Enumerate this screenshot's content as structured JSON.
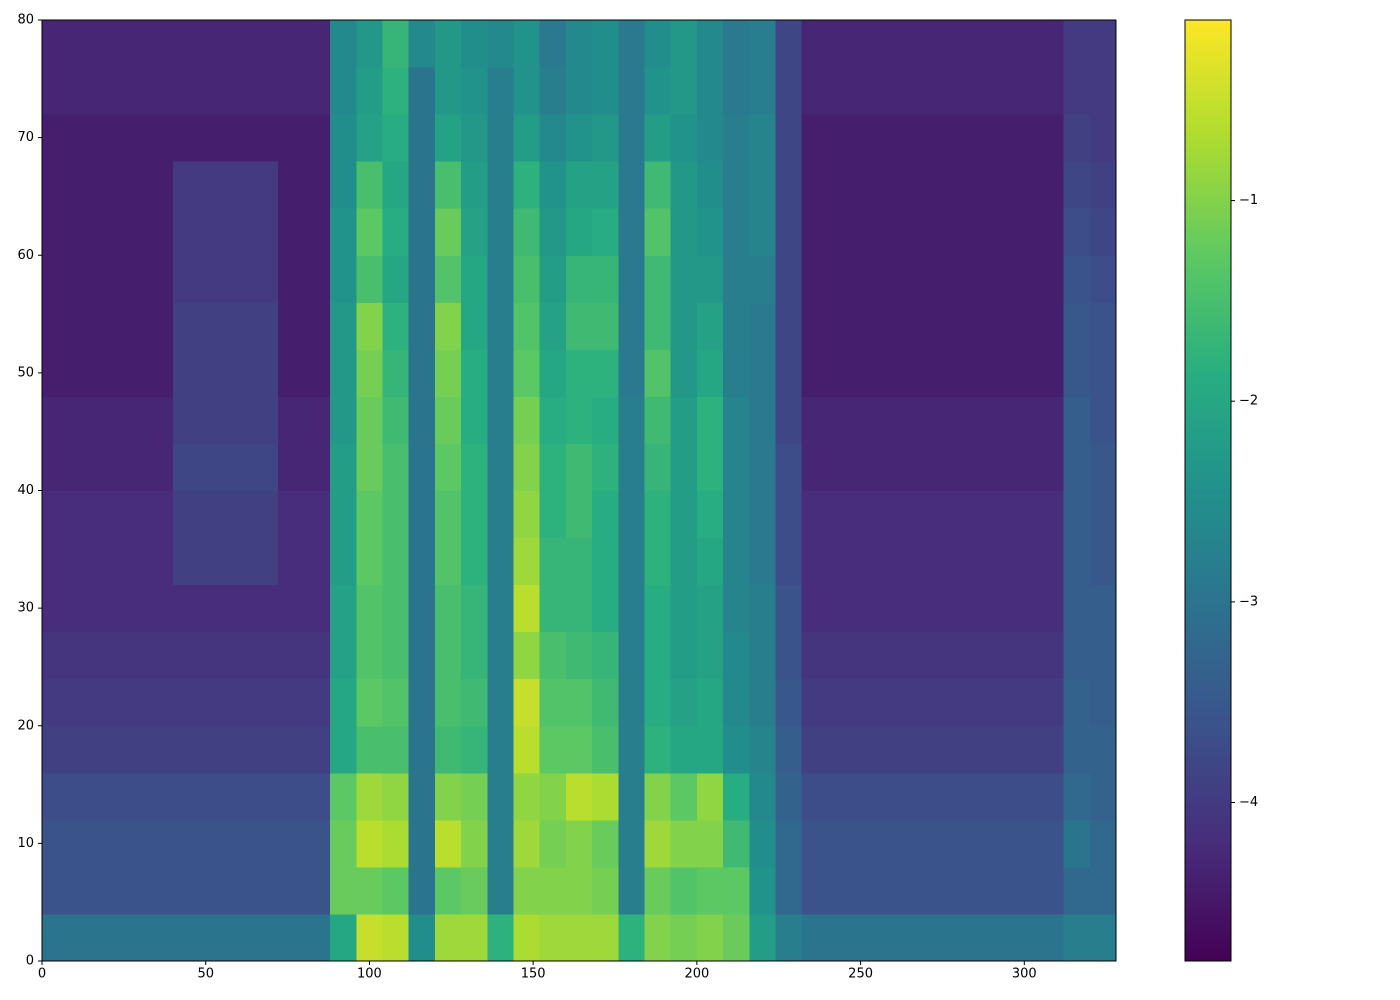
{
  "chart_data": {
    "type": "heatmap",
    "colormap": "viridis",
    "xbins": [
      0,
      8,
      16,
      24,
      32,
      40,
      48,
      56,
      64,
      72,
      80,
      88,
      96,
      104,
      112,
      120,
      128,
      136,
      144,
      152,
      160,
      168,
      176,
      184,
      192,
      200,
      208,
      216,
      224,
      232,
      240,
      248,
      256,
      264,
      272,
      280,
      288,
      296,
      304,
      312,
      320,
      328
    ],
    "ybins": [
      0,
      4,
      8,
      12,
      16,
      20,
      24,
      28,
      32,
      36,
      40,
      44,
      48,
      52,
      56,
      60,
      64,
      68,
      72,
      76,
      80
    ],
    "values": [
      [
        -3.0,
        -3.0,
        -3.0,
        -3.0,
        -3.0,
        -3.0,
        -3.0,
        -3.0,
        -3.0,
        -3.0,
        -3.0,
        -2.0,
        -0.5,
        -0.6,
        -2.5,
        -0.8,
        -0.8,
        -1.8,
        -0.7,
        -0.8,
        -0.8,
        -0.8,
        -1.8,
        -1.0,
        -1.1,
        -1.0,
        -1.2,
        -2.2,
        -2.8,
        -3.0,
        -3.0,
        -3.0,
        -3.0,
        -3.0,
        -3.0,
        -3.0,
        -3.0,
        -3.0,
        -3.0,
        -2.8,
        -2.8
      ],
      [
        -3.6,
        -3.6,
        -3.6,
        -3.6,
        -3.6,
        -3.6,
        -3.6,
        -3.6,
        -3.6,
        -3.6,
        -3.6,
        -1.2,
        -1.2,
        -1.3,
        -3.0,
        -1.3,
        -1.2,
        -2.8,
        -1.0,
        -1.0,
        -1.0,
        -1.1,
        -2.8,
        -1.2,
        -1.4,
        -1.3,
        -1.3,
        -2.4,
        -3.2,
        -3.6,
        -3.6,
        -3.6,
        -3.6,
        -3.6,
        -3.6,
        -3.6,
        -3.6,
        -3.6,
        -3.6,
        -3.2,
        -3.2
      ],
      [
        -3.6,
        -3.6,
        -3.6,
        -3.6,
        -3.6,
        -3.6,
        -3.6,
        -3.6,
        -3.6,
        -3.6,
        -3.6,
        -1.2,
        -0.6,
        -0.7,
        -3.0,
        -0.6,
        -1.0,
        -2.8,
        -0.8,
        -1.1,
        -1.0,
        -1.2,
        -2.8,
        -0.8,
        -1.0,
        -1.0,
        -1.6,
        -2.5,
        -3.2,
        -3.6,
        -3.6,
        -3.6,
        -3.6,
        -3.6,
        -3.6,
        -3.6,
        -3.6,
        -3.6,
        -3.6,
        -3.0,
        -3.2
      ],
      [
        -3.7,
        -3.7,
        -3.7,
        -3.7,
        -3.7,
        -3.7,
        -3.7,
        -3.7,
        -3.7,
        -3.7,
        -3.7,
        -1.3,
        -0.8,
        -0.9,
        -3.0,
        -1.0,
        -1.1,
        -2.8,
        -0.9,
        -1.0,
        -0.6,
        -0.7,
        -2.8,
        -1.0,
        -1.3,
        -0.9,
        -1.9,
        -2.6,
        -3.3,
        -3.7,
        -3.7,
        -3.7,
        -3.7,
        -3.7,
        -3.7,
        -3.7,
        -3.7,
        -3.7,
        -3.7,
        -3.2,
        -3.3
      ],
      [
        -3.9,
        -3.9,
        -3.9,
        -3.9,
        -3.9,
        -3.9,
        -3.9,
        -3.9,
        -3.9,
        -3.9,
        -3.9,
        -2.0,
        -1.5,
        -1.5,
        -3.0,
        -1.6,
        -1.7,
        -2.8,
        -0.6,
        -1.3,
        -1.3,
        -1.5,
        -2.8,
        -1.8,
        -2.0,
        -2.0,
        -2.5,
        -2.7,
        -3.4,
        -3.9,
        -3.9,
        -3.9,
        -3.9,
        -3.9,
        -3.9,
        -3.9,
        -3.9,
        -3.9,
        -3.9,
        -3.3,
        -3.3
      ],
      [
        -4.0,
        -4.0,
        -4.0,
        -4.0,
        -4.0,
        -4.0,
        -4.0,
        -4.0,
        -4.0,
        -4.0,
        -4.0,
        -2.0,
        -1.3,
        -1.4,
        -3.0,
        -1.5,
        -1.6,
        -2.8,
        -0.5,
        -1.4,
        -1.4,
        -1.6,
        -2.8,
        -1.9,
        -2.1,
        -2.0,
        -2.6,
        -2.8,
        -3.5,
        -4.0,
        -4.0,
        -4.0,
        -4.0,
        -4.0,
        -4.0,
        -4.0,
        -4.0,
        -4.0,
        -4.0,
        -3.3,
        -3.4
      ],
      [
        -4.1,
        -4.1,
        -4.1,
        -4.1,
        -4.1,
        -4.1,
        -4.1,
        -4.1,
        -4.1,
        -4.1,
        -4.1,
        -2.1,
        -1.4,
        -1.5,
        -3.0,
        -1.5,
        -1.7,
        -2.8,
        -0.9,
        -1.5,
        -1.6,
        -1.7,
        -2.8,
        -1.9,
        -2.2,
        -2.1,
        -2.6,
        -2.8,
        -3.6,
        -4.1,
        -4.1,
        -4.1,
        -4.1,
        -4.1,
        -4.1,
        -4.1,
        -4.1,
        -4.1,
        -4.1,
        -3.4,
        -3.4
      ],
      [
        -4.2,
        -4.2,
        -4.2,
        -4.2,
        -4.2,
        -4.2,
        -4.2,
        -4.2,
        -4.2,
        -4.2,
        -4.2,
        -2.1,
        -1.4,
        -1.5,
        -3.0,
        -1.5,
        -1.7,
        -2.8,
        -0.6,
        -1.7,
        -1.7,
        -1.9,
        -2.8,
        -1.9,
        -2.2,
        -2.1,
        -2.7,
        -2.8,
        -3.6,
        -4.2,
        -4.2,
        -4.2,
        -4.2,
        -4.2,
        -4.2,
        -4.2,
        -4.2,
        -4.2,
        -4.2,
        -3.4,
        -3.4
      ],
      [
        -4.2,
        -4.2,
        -4.2,
        -4.2,
        -4.2,
        -3.9,
        -3.9,
        -3.9,
        -3.9,
        -4.2,
        -4.2,
        -2.2,
        -1.3,
        -1.5,
        -3.0,
        -1.4,
        -1.8,
        -2.8,
        -0.8,
        -1.7,
        -1.7,
        -1.9,
        -2.8,
        -1.8,
        -2.2,
        -2.0,
        -2.7,
        -2.9,
        -3.7,
        -4.2,
        -4.2,
        -4.2,
        -4.2,
        -4.2,
        -4.2,
        -4.2,
        -4.2,
        -4.2,
        -4.2,
        -3.4,
        -3.5
      ],
      [
        -4.2,
        -4.2,
        -4.2,
        -4.2,
        -4.2,
        -3.9,
        -3.9,
        -3.9,
        -3.9,
        -4.2,
        -4.2,
        -2.2,
        -1.3,
        -1.5,
        -3.0,
        -1.4,
        -1.8,
        -2.8,
        -0.9,
        -1.8,
        -1.6,
        -1.9,
        -2.8,
        -1.8,
        -2.2,
        -1.9,
        -2.7,
        -2.9,
        -3.7,
        -4.2,
        -4.2,
        -4.2,
        -4.2,
        -4.2,
        -4.2,
        -4.2,
        -4.2,
        -4.2,
        -4.2,
        -3.4,
        -3.5
      ],
      [
        -4.3,
        -4.3,
        -4.3,
        -4.3,
        -4.3,
        -3.8,
        -3.8,
        -3.8,
        -3.8,
        -4.3,
        -4.3,
        -2.2,
        -1.2,
        -1.5,
        -3.0,
        -1.3,
        -1.8,
        -2.8,
        -1.0,
        -1.8,
        -1.6,
        -1.8,
        -2.8,
        -1.7,
        -2.2,
        -1.8,
        -2.7,
        -2.9,
        -3.7,
        -4.3,
        -4.3,
        -4.3,
        -4.3,
        -4.3,
        -4.3,
        -4.3,
        -4.3,
        -4.3,
        -4.3,
        -3.4,
        -3.5
      ],
      [
        -4.3,
        -4.3,
        -4.3,
        -4.3,
        -4.3,
        -3.9,
        -3.9,
        -3.9,
        -3.9,
        -4.3,
        -4.3,
        -2.3,
        -1.2,
        -1.6,
        -3.0,
        -1.2,
        -1.9,
        -2.8,
        -1.1,
        -1.9,
        -1.8,
        -1.9,
        -2.8,
        -1.6,
        -2.2,
        -1.8,
        -2.7,
        -2.9,
        -3.8,
        -4.3,
        -4.3,
        -4.3,
        -4.3,
        -4.3,
        -4.3,
        -4.3,
        -4.3,
        -4.3,
        -4.3,
        -3.4,
        -3.6
      ],
      [
        -4.4,
        -4.4,
        -4.4,
        -4.4,
        -4.4,
        -3.9,
        -3.9,
        -3.9,
        -3.9,
        -4.4,
        -4.4,
        -2.3,
        -1.1,
        -1.7,
        -3.0,
        -1.1,
        -1.9,
        -2.8,
        -1.3,
        -2.0,
        -1.8,
        -1.8,
        -2.9,
        -1.4,
        -2.3,
        -2.0,
        -2.8,
        -2.9,
        -3.8,
        -4.4,
        -4.4,
        -4.4,
        -4.4,
        -4.4,
        -4.4,
        -4.4,
        -4.4,
        -4.4,
        -4.4,
        -3.5,
        -3.6
      ],
      [
        -4.4,
        -4.4,
        -4.4,
        -4.4,
        -4.4,
        -3.9,
        -3.9,
        -3.9,
        -3.9,
        -4.4,
        -4.4,
        -2.3,
        -1.0,
        -1.8,
        -3.0,
        -1.0,
        -2.0,
        -2.8,
        -1.4,
        -2.1,
        -1.6,
        -1.6,
        -2.9,
        -1.6,
        -2.3,
        -2.1,
        -2.8,
        -2.9,
        -3.8,
        -4.4,
        -4.4,
        -4.4,
        -4.4,
        -4.4,
        -4.4,
        -4.4,
        -4.4,
        -4.4,
        -4.4,
        -3.5,
        -3.6
      ],
      [
        -4.4,
        -4.4,
        -4.4,
        -4.4,
        -4.4,
        -4.0,
        -4.0,
        -4.0,
        -4.0,
        -4.4,
        -4.4,
        -2.4,
        -1.5,
        -2.0,
        -3.0,
        -1.4,
        -2.0,
        -2.8,
        -1.5,
        -2.2,
        -1.7,
        -1.7,
        -2.9,
        -1.6,
        -2.3,
        -2.3,
        -2.8,
        -2.8,
        -3.8,
        -4.4,
        -4.4,
        -4.4,
        -4.4,
        -4.4,
        -4.4,
        -4.4,
        -4.4,
        -4.4,
        -4.4,
        -3.6,
        -3.7
      ],
      [
        -4.4,
        -4.4,
        -4.4,
        -4.4,
        -4.4,
        -4.0,
        -4.0,
        -4.0,
        -4.0,
        -4.4,
        -4.4,
        -2.4,
        -1.3,
        -1.9,
        -3.0,
        -1.2,
        -2.1,
        -2.8,
        -1.6,
        -2.3,
        -2.0,
        -1.9,
        -2.9,
        -1.4,
        -2.3,
        -2.4,
        -2.8,
        -2.7,
        -3.8,
        -4.4,
        -4.4,
        -4.4,
        -4.4,
        -4.4,
        -4.4,
        -4.4,
        -4.4,
        -4.4,
        -4.4,
        -3.7,
        -3.8
      ],
      [
        -4.4,
        -4.4,
        -4.4,
        -4.4,
        -4.4,
        -4.0,
        -4.0,
        -4.0,
        -4.0,
        -4.4,
        -4.4,
        -2.5,
        -1.5,
        -2.0,
        -3.0,
        -1.5,
        -2.2,
        -2.8,
        -1.8,
        -2.4,
        -2.1,
        -2.1,
        -2.9,
        -1.6,
        -2.3,
        -2.5,
        -2.8,
        -2.7,
        -3.8,
        -4.4,
        -4.4,
        -4.4,
        -4.4,
        -4.4,
        -4.4,
        -4.4,
        -4.4,
        -4.4,
        -4.4,
        -3.8,
        -3.9
      ],
      [
        -4.4,
        -4.4,
        -4.4,
        -4.4,
        -4.4,
        -4.4,
        -4.4,
        -4.4,
        -4.4,
        -4.4,
        -4.4,
        -2.5,
        -2.1,
        -1.9,
        -3.0,
        -2.1,
        -2.3,
        -2.8,
        -2.2,
        -2.6,
        -2.4,
        -2.3,
        -2.9,
        -2.2,
        -2.4,
        -2.6,
        -2.8,
        -2.7,
        -3.8,
        -4.4,
        -4.4,
        -4.4,
        -4.4,
        -4.4,
        -4.4,
        -4.4,
        -4.4,
        -4.4,
        -4.4,
        -3.9,
        -4.0
      ],
      [
        -4.3,
        -4.3,
        -4.3,
        -4.3,
        -4.3,
        -4.3,
        -4.3,
        -4.3,
        -4.3,
        -4.3,
        -4.3,
        -2.6,
        -2.2,
        -1.8,
        -3.0,
        -2.3,
        -2.4,
        -2.8,
        -2.4,
        -2.8,
        -2.6,
        -2.5,
        -2.9,
        -2.4,
        -2.3,
        -2.6,
        -2.9,
        -2.8,
        -3.8,
        -4.3,
        -4.3,
        -4.3,
        -4.3,
        -4.3,
        -4.3,
        -4.3,
        -4.3,
        -4.3,
        -4.3,
        -4.0,
        -4.0
      ],
      [
        -4.3,
        -4.3,
        -4.3,
        -4.3,
        -4.3,
        -4.3,
        -4.3,
        -4.3,
        -4.3,
        -4.3,
        -4.3,
        -2.6,
        -2.3,
        -1.7,
        -2.6,
        -2.3,
        -2.5,
        -2.6,
        -2.4,
        -2.9,
        -2.6,
        -2.5,
        -2.9,
        -2.5,
        -2.3,
        -2.6,
        -2.9,
        -2.8,
        -3.8,
        -4.3,
        -4.3,
        -4.3,
        -4.3,
        -4.3,
        -4.3,
        -4.3,
        -4.3,
        -4.3,
        -4.3,
        -4.0,
        -4.0
      ]
    ],
    "xlim": [
      0,
      328
    ],
    "ylim": [
      0,
      80
    ],
    "xticks": [
      0,
      50,
      100,
      150,
      200,
      250,
      300
    ],
    "yticks": [
      0,
      10,
      20,
      30,
      40,
      50,
      60,
      70,
      80
    ],
    "zlim": [
      -4.79,
      -0.1
    ],
    "colorbar_ticks": [
      {
        "value": -1,
        "label": "−1"
      },
      {
        "value": -2,
        "label": "−2"
      },
      {
        "value": -3,
        "label": "−3"
      },
      {
        "value": -4,
        "label": "−4"
      }
    ]
  }
}
